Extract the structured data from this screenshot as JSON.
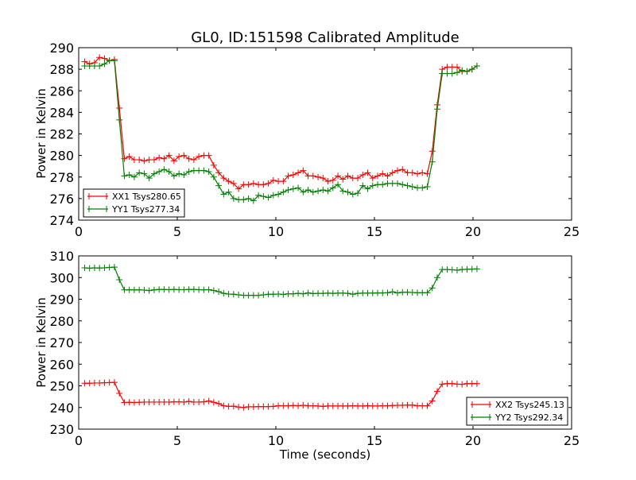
{
  "chart_data": [
    {
      "type": "line",
      "title": "GL0, ID:151598 Calibrated Amplitude",
      "xlabel": "",
      "ylabel": "Power in Kelvin",
      "xlim": [
        0,
        25
      ],
      "ylim": [
        274,
        290
      ],
      "xticks": [
        "0",
        "5",
        "10",
        "15",
        "20",
        "25"
      ],
      "yticks": [
        "274",
        "276",
        "278",
        "280",
        "282",
        "284",
        "286",
        "288",
        "290"
      ],
      "x_range": [
        0.3,
        20.2
      ],
      "legend_position": "lower-left",
      "series": [
        {
          "name": "XX1 Tsys280.65",
          "color": "#ff0000",
          "values": [
            288.7,
            288.5,
            288.6,
            289.1,
            289.0,
            288.8,
            288.9,
            284.4,
            279.7,
            279.9,
            279.6,
            279.6,
            279.5,
            279.6,
            279.6,
            279.8,
            279.7,
            280.0,
            279.5,
            279.9,
            280.0,
            279.7,
            279.6,
            279.9,
            280.0,
            280.0,
            279.1,
            278.4,
            277.9,
            277.6,
            277.4,
            276.9,
            277.3,
            277.3,
            277.4,
            277.3,
            277.3,
            277.4,
            277.7,
            277.6,
            277.6,
            278.1,
            278.2,
            278.4,
            278.6,
            278.1,
            278.1,
            278.0,
            277.9,
            277.6,
            277.7,
            278.1,
            277.8,
            278.1,
            277.9,
            277.9,
            278.2,
            278.4,
            277.9,
            278.1,
            278.3,
            278.1,
            278.4,
            278.6,
            278.7,
            278.4,
            278.4,
            278.3,
            278.4,
            278.3,
            280.4,
            284.7,
            288.0,
            288.2,
            288.2,
            288.2,
            287.8,
            287.8,
            288.0,
            288.3
          ]
        },
        {
          "name": "YY1 Tsys277.34",
          "color": "#008000",
          "values": [
            288.3,
            288.3,
            288.3,
            288.3,
            288.5,
            288.8,
            288.8,
            283.3,
            278.1,
            278.2,
            278.0,
            278.4,
            278.3,
            277.9,
            278.3,
            278.5,
            278.7,
            278.5,
            278.1,
            278.3,
            278.2,
            278.5,
            278.6,
            278.6,
            278.6,
            278.5,
            278.0,
            277.2,
            276.4,
            276.6,
            276.0,
            275.9,
            275.9,
            276.0,
            275.8,
            276.3,
            276.2,
            276.1,
            276.3,
            276.4,
            276.6,
            276.8,
            276.9,
            277.0,
            276.6,
            276.8,
            276.6,
            276.7,
            276.8,
            276.7,
            277.0,
            277.3,
            276.7,
            276.6,
            276.4,
            276.5,
            277.2,
            276.9,
            277.2,
            277.3,
            277.3,
            277.4,
            277.4,
            277.4,
            277.3,
            277.2,
            277.1,
            277.0,
            277.0,
            277.1,
            279.4,
            284.3,
            287.6,
            287.6,
            287.6,
            287.7,
            287.9,
            287.8,
            288.0,
            288.3
          ]
        }
      ]
    },
    {
      "type": "line",
      "title": "",
      "xlabel": "Time (seconds)",
      "ylabel": "Power in Kelvin",
      "xlim": [
        0,
        25
      ],
      "ylim": [
        230,
        310
      ],
      "xticks": [
        "0",
        "5",
        "10",
        "15",
        "20",
        "25"
      ],
      "yticks": [
        "230",
        "240",
        "250",
        "260",
        "270",
        "280",
        "290",
        "300",
        "310"
      ],
      "x_range": [
        0.3,
        20.2
      ],
      "legend_position": "lower-right",
      "series": [
        {
          "name": "XX2 Tsys245.13",
          "color": "#ff0000",
          "values": [
            251.2,
            251.2,
            251.3,
            251.3,
            251.4,
            251.5,
            251.6,
            246.5,
            242.3,
            242.4,
            242.3,
            242.4,
            242.5,
            242.5,
            242.5,
            242.5,
            242.5,
            242.5,
            242.6,
            242.6,
            242.5,
            242.8,
            242.5,
            242.5,
            242.6,
            243.0,
            242.4,
            241.8,
            240.8,
            240.5,
            240.6,
            240.2,
            240.0,
            240.3,
            240.3,
            240.4,
            240.4,
            240.4,
            240.5,
            240.8,
            240.8,
            240.8,
            240.9,
            240.8,
            241.0,
            240.8,
            240.8,
            240.7,
            240.5,
            240.7,
            240.7,
            240.7,
            240.7,
            240.7,
            240.8,
            240.7,
            240.7,
            240.8,
            240.7,
            240.7,
            240.8,
            240.8,
            240.9,
            241.0,
            241.0,
            241.1,
            241.1,
            240.8,
            240.8,
            240.8,
            243.0,
            247.5,
            250.8,
            251.0,
            251.0,
            250.8,
            250.7,
            251.0,
            251.0,
            251.0
          ]
        },
        {
          "name": "YY2 Tsys292.34",
          "color": "#008000",
          "values": [
            304.5,
            304.3,
            304.5,
            304.4,
            304.5,
            304.7,
            304.8,
            299.0,
            294.3,
            294.3,
            294.3,
            294.3,
            294.2,
            294.0,
            294.3,
            294.5,
            294.5,
            294.4,
            294.5,
            294.4,
            294.4,
            294.5,
            294.5,
            294.4,
            294.3,
            294.4,
            294.0,
            293.5,
            292.7,
            292.4,
            292.3,
            292.0,
            291.8,
            291.8,
            291.8,
            291.8,
            292.0,
            292.3,
            292.3,
            292.4,
            292.2,
            292.5,
            292.5,
            292.7,
            292.5,
            292.9,
            292.6,
            292.7,
            292.7,
            292.8,
            292.7,
            292.8,
            292.8,
            292.7,
            292.3,
            292.7,
            292.8,
            292.8,
            292.8,
            292.9,
            292.9,
            293.0,
            293.4,
            292.9,
            293.2,
            293.2,
            293.1,
            293.0,
            293.0,
            293.0,
            295.2,
            300.0,
            303.7,
            303.7,
            303.6,
            303.4,
            303.7,
            303.8,
            303.9,
            304.0
          ]
        }
      ]
    }
  ]
}
